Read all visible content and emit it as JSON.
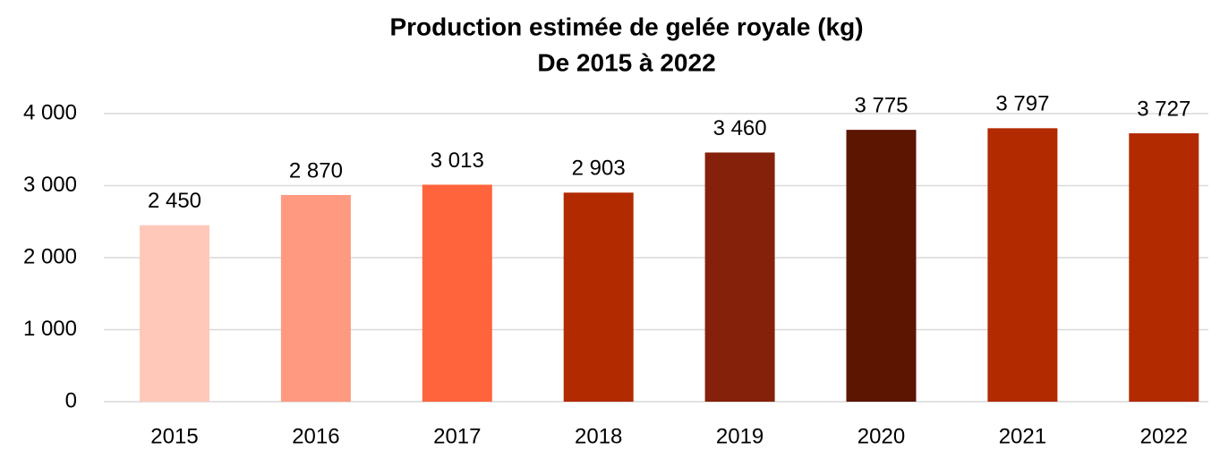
{
  "chart_data": {
    "type": "bar",
    "title": "Production estimée de gelée royale (kg)",
    "subtitle": "De 2015 à 2022",
    "categories": [
      "2015",
      "2016",
      "2017",
      "2018",
      "2019",
      "2020",
      "2021",
      "2022"
    ],
    "values": [
      2450,
      2870,
      3013,
      2903,
      3460,
      3775,
      3797,
      3727
    ],
    "value_labels": [
      "2 450",
      "2 870",
      "3 013",
      "2 903",
      "3 460",
      "3 775",
      "3 797",
      "3 727"
    ],
    "colors": [
      "#ffc8b9",
      "#ff9980",
      "#ff643c",
      "#b22a00",
      "#85210a",
      "#5c1500",
      "#b22a00",
      "#b22a00"
    ],
    "ylim": [
      0,
      4000
    ],
    "yticks": [
      0,
      {
        "value": 1000,
        "label": "1 000"
      },
      {
        "value": 2000,
        "label": "2 000"
      },
      {
        "value": 3000,
        "label": "3 000"
      },
      {
        "value": 4000,
        "label": "4 000"
      }
    ],
    "grid": true
  }
}
